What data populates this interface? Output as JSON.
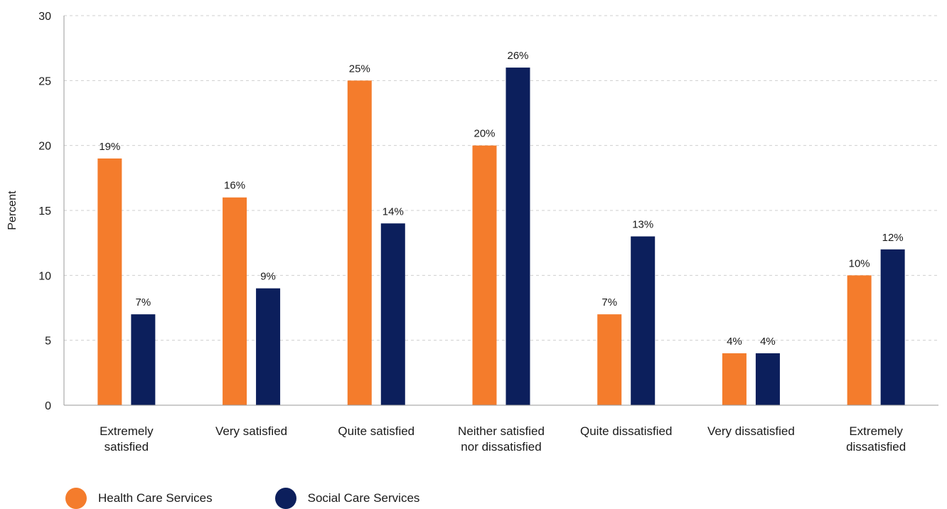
{
  "chart_data": {
    "type": "bar",
    "ylabel": "Percent",
    "xlabel": "",
    "ylim": [
      0,
      30
    ],
    "yticks": [
      0,
      5,
      10,
      15,
      20,
      25,
      30
    ],
    "grid": true,
    "legend_position": "bottom-left",
    "categories": [
      [
        "Extremely",
        "satisfied"
      ],
      [
        "Very satisfied"
      ],
      [
        "Quite satisfied"
      ],
      [
        "Neither satisfied",
        "nor dissatisfied"
      ],
      [
        "Quite dissatisfied"
      ],
      [
        "Very dissatisfied"
      ],
      [
        "Extremely",
        "dissatisfied"
      ]
    ],
    "series": [
      {
        "name": "Health Care Services",
        "color": "#F47C2C",
        "values": [
          19,
          16,
          25,
          20,
          7,
          4,
          10
        ],
        "labels": [
          "19%",
          "16%",
          "25%",
          "20%",
          "7%",
          "4%",
          "10%"
        ]
      },
      {
        "name": "Social Care Services",
        "color": "#0C1F5C",
        "values": [
          7,
          9,
          14,
          26,
          13,
          4,
          12
        ],
        "labels": [
          "7%",
          "9%",
          "14%",
          "26%",
          "13%",
          "4%",
          "12%"
        ]
      }
    ]
  }
}
